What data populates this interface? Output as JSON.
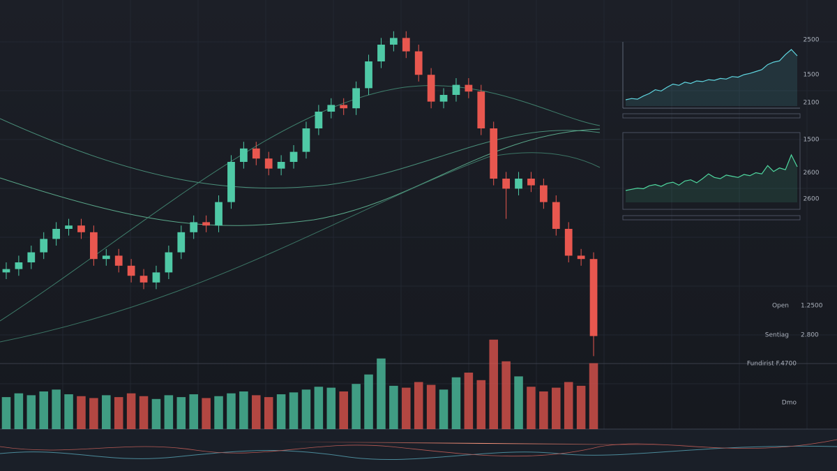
{
  "chart_data": [
    {
      "type": "candlestick",
      "open": [
        27,
        28,
        30,
        33,
        37,
        40,
        41,
        39,
        31,
        32,
        29,
        26,
        24,
        27,
        33,
        39,
        42,
        41,
        48,
        60,
        64,
        61,
        58,
        60,
        63,
        70,
        75,
        77,
        76,
        82,
        90,
        95,
        97,
        93,
        86,
        78,
        80,
        83,
        81,
        70,
        55,
        52,
        55,
        53,
        48,
        40,
        32,
        31
      ],
      "high": [
        30,
        32,
        35,
        39,
        42,
        43,
        43,
        41,
        34,
        34,
        31,
        28,
        29,
        35,
        41,
        44,
        44,
        50,
        62,
        66,
        66,
        63,
        62,
        65,
        72,
        77,
        79,
        79,
        84,
        92,
        97,
        99,
        99,
        95,
        88,
        82,
        85,
        85,
        83,
        72,
        57,
        57,
        57,
        55,
        50,
        42,
        34,
        33
      ],
      "low": [
        25,
        26,
        28,
        31,
        35,
        38,
        37,
        29,
        29,
        27,
        24,
        22,
        22,
        25,
        31,
        37,
        39,
        39,
        46,
        58,
        59,
        56,
        56,
        58,
        61,
        68,
        73,
        74,
        74,
        80,
        88,
        93,
        91,
        84,
        76,
        76,
        78,
        79,
        68,
        53,
        43,
        50,
        51,
        46,
        38,
        30,
        29,
        2
      ],
      "close": [
        28,
        30,
        33,
        37,
        40,
        41,
        39,
        31,
        32,
        29,
        26,
        24,
        27,
        33,
        39,
        42,
        41,
        48,
        60,
        64,
        61,
        58,
        60,
        63,
        70,
        75,
        77,
        76,
        82,
        90,
        95,
        97,
        93,
        86,
        78,
        80,
        83,
        81,
        70,
        55,
        52,
        55,
        53,
        48,
        40,
        32,
        31,
        8
      ],
      "volume": [
        34,
        38,
        36,
        40,
        42,
        37,
        35,
        33,
        36,
        34,
        38,
        35,
        32,
        36,
        34,
        37,
        33,
        35,
        38,
        40,
        36,
        34,
        37,
        39,
        42,
        45,
        44,
        40,
        48,
        58,
        75,
        46,
        44,
        50,
        47,
        42,
        55,
        60,
        52,
        95,
        72,
        56,
        45,
        40,
        44,
        50,
        46,
        70
      ],
      "ylim": [
        0,
        100
      ],
      "vlim": [
        0,
        100
      ],
      "up_color": "#4fc9a6",
      "down_color": "#e8574f"
    },
    {
      "type": "line",
      "color": "#5fd6e0",
      "ylim": [
        0,
        100
      ],
      "values": [
        10,
        12,
        11,
        16,
        20,
        26,
        24,
        30,
        35,
        33,
        38,
        36,
        40,
        39,
        42,
        41,
        44,
        43,
        47,
        46,
        50,
        52,
        55,
        58,
        66,
        70,
        72,
        82,
        90,
        80
      ],
      "side_labels": [
        "2500",
        "1500",
        "2100"
      ]
    },
    {
      "type": "line",
      "color": "#4fd8a0",
      "ylim": [
        0,
        100
      ],
      "values": [
        20,
        22,
        24,
        23,
        28,
        30,
        27,
        32,
        34,
        29,
        36,
        38,
        33,
        40,
        48,
        42,
        40,
        46,
        44,
        42,
        47,
        45,
        50,
        48,
        62,
        52,
        58,
        55,
        80,
        60
      ],
      "side_labels": [
        "1500",
        "2600",
        "2600"
      ]
    }
  ],
  "panel": {
    "rows": [
      [
        "Open",
        "1.2500"
      ],
      [
        "Sentiag",
        "2.800"
      ],
      [
        "Fundirist F.4700"
      ],
      [
        "Dmo"
      ]
    ]
  }
}
